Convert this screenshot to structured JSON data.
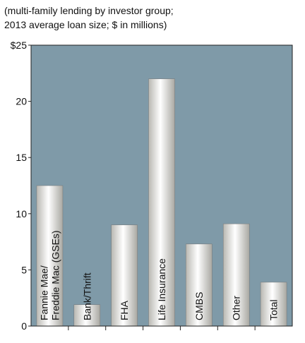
{
  "chart_data": {
    "type": "bar",
    "title_lines": [
      "(multi-family lending by investor group;",
      "2013 average loan size; $ in millions)"
    ],
    "categories": [
      "Fannie Mae/\nFreddie Mac (GSEs)",
      "Bank/Thrift",
      "FHA",
      "Life Insurance",
      "CMBS",
      "Other",
      "Total"
    ],
    "values": [
      12.5,
      1.9,
      9.0,
      22.0,
      7.3,
      9.1,
      3.9
    ],
    "color": "#eeeae0",
    "background": "#7f9aa8",
    "ylim": [
      0,
      25
    ],
    "yticks": [
      0,
      5,
      10,
      15,
      20,
      {
        "value": 25,
        "label": "$25"
      }
    ]
  }
}
